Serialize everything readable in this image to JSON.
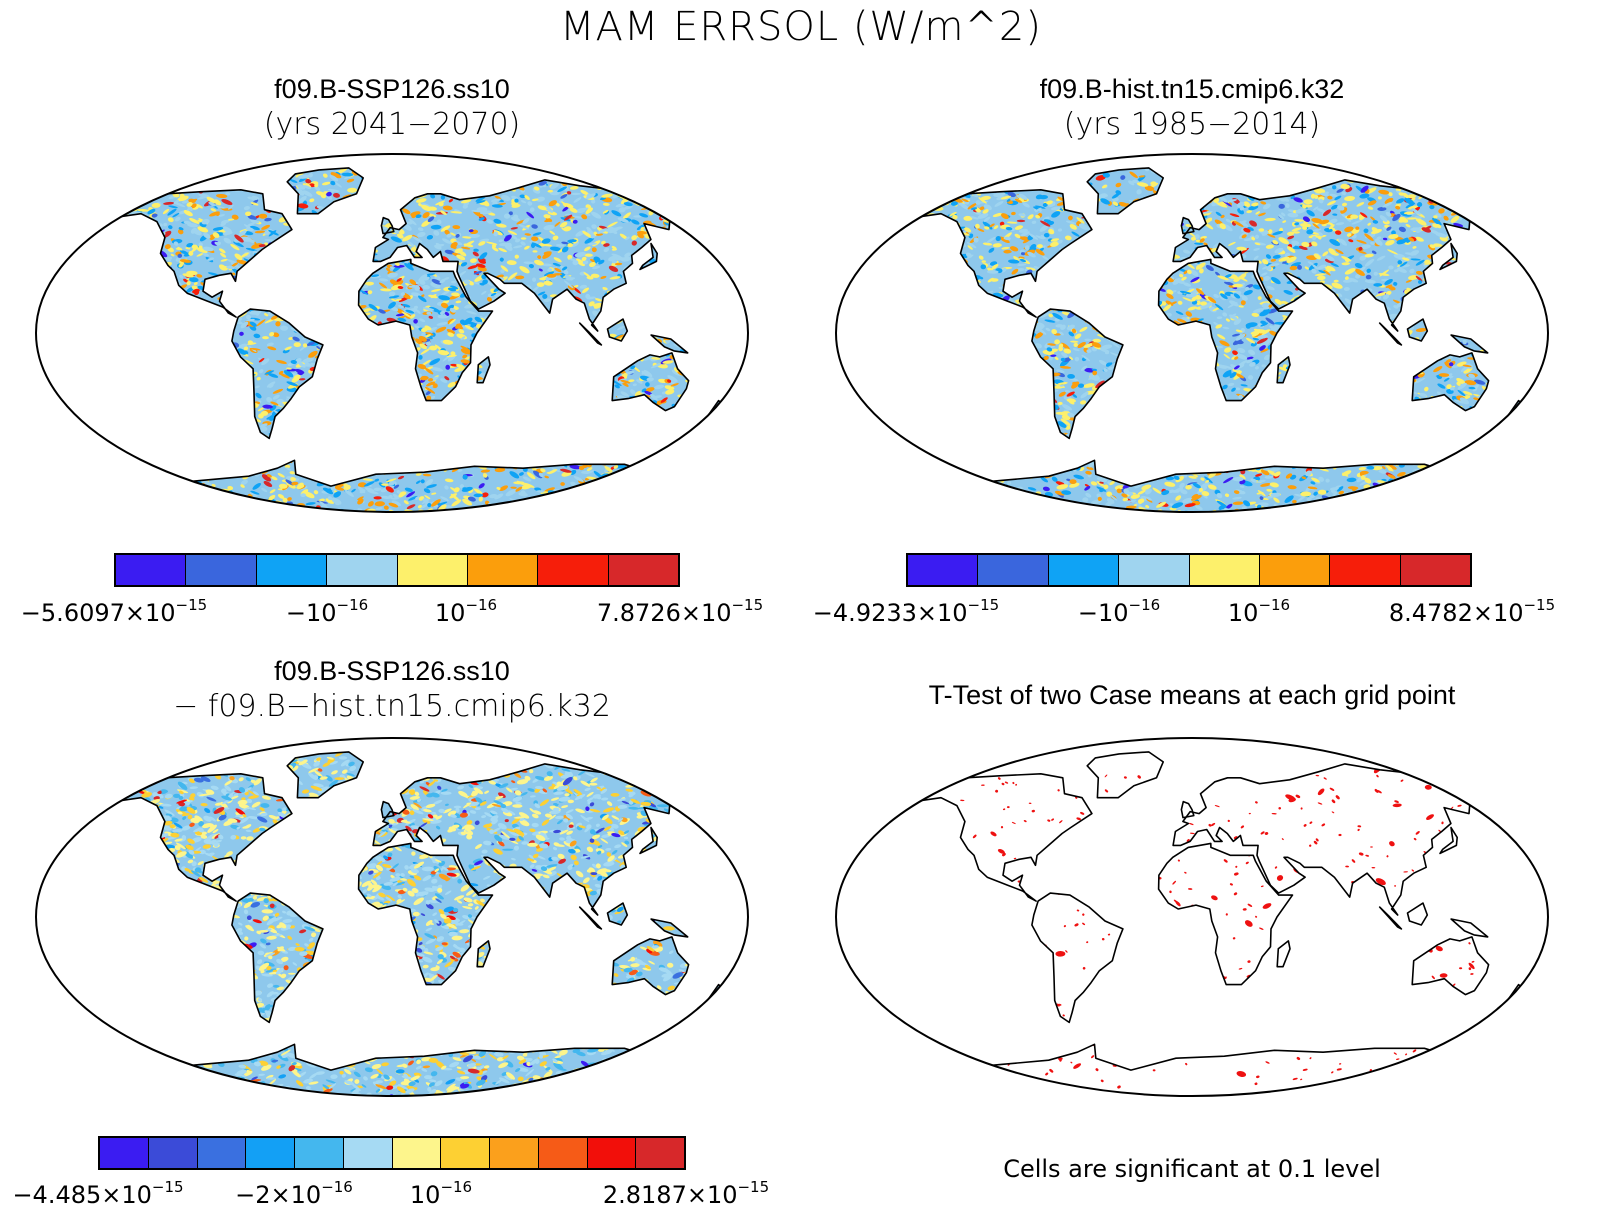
{
  "main_title": "MAM ERRSOL (W/m^2)",
  "panels": [
    {
      "title": "f09.B-SSP126.ss10",
      "subtitle": "(yrs 2041−2070)"
    },
    {
      "title": "f09.B-hist.tn15.cmip6.k32",
      "subtitle": "(yrs 1985−2014)"
    },
    {
      "title": "f09.B-SSP126.ss10",
      "subtitle": "− f09.B−hist.tn15.cmip6.k32"
    },
    {
      "title": "T-Test of two Case means at each grid point",
      "note": "Cells are significant at 0.1 level"
    }
  ],
  "colorbars": [
    {
      "colors": [
        "#3b1cf2",
        "#3a66dd",
        "#0fa3f5",
        "#9fd4ef",
        "#fdf06b",
        "#fb9e0c",
        "#f61e0a",
        "#d7282a"
      ],
      "labels": [
        {
          "text": "−5.6097×10",
          "exp": "−15"
        },
        {
          "text": "−10",
          "exp": "−16"
        },
        {
          "text": "10",
          "exp": "−16"
        },
        {
          "text": "7.8726×10",
          "exp": "−15"
        }
      ]
    },
    {
      "colors": [
        "#3b1cf2",
        "#3a66dd",
        "#0fa3f5",
        "#9fd4ef",
        "#fdf06b",
        "#fb9e0c",
        "#f61e0a",
        "#d7282a"
      ],
      "labels": [
        {
          "text": "−4.9233×10",
          "exp": "−15"
        },
        {
          "text": "−10",
          "exp": "−16"
        },
        {
          "text": "10",
          "exp": "−16"
        },
        {
          "text": "8.4782×10",
          "exp": "−15"
        }
      ]
    },
    {
      "colors": [
        "#3b1cf2",
        "#3b4bd8",
        "#3a70e0",
        "#13a0f5",
        "#44b7ee",
        "#a6daf3",
        "#fdf58c",
        "#fdd033",
        "#fba01c",
        "#f65b17",
        "#f20f0a",
        "#d7282a"
      ],
      "labels": [
        {
          "text": "−4.485×10",
          "exp": "−15"
        },
        {
          "text": "−2×10",
          "exp": "−16"
        },
        {
          "text": "10",
          "exp": "−16"
        },
        {
          "text": "2.8187×10",
          "exp": "−15"
        }
      ]
    }
  ],
  "significance_color": "#ee1111",
  "colors": {
    "land_outline": "#000000",
    "ocean": "#ffffff"
  }
}
